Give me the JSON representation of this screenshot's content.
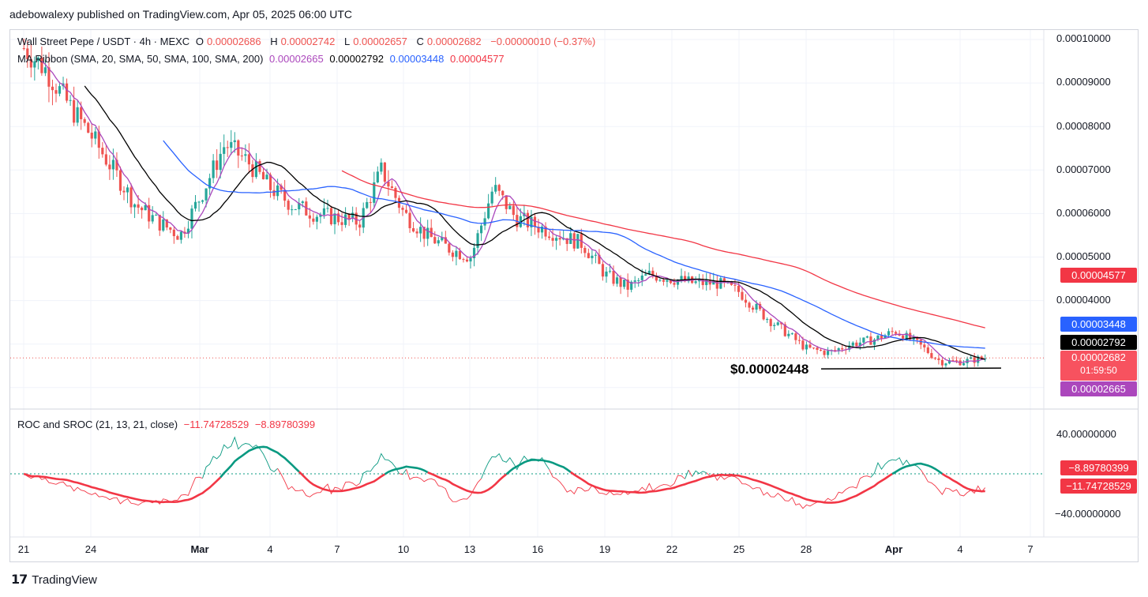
{
  "header": {
    "publisher_line": "adebowalexy published on TradingView.com, Apr 05, 2025 06:00 UTC"
  },
  "symbol_legend": {
    "name": "Wall Street Pepe / USDT · 4h · MEXC",
    "o_label": "O",
    "o": "0.00002686",
    "h_label": "H",
    "h": "0.00002742",
    "l_label": "L",
    "l": "0.00002657",
    "c_label": "C",
    "c": "0.00002682",
    "change": "−0.00000010 (−0.37%)"
  },
  "ma_legend": {
    "name": "MA Ribbon (SMA, 20, SMA, 50, SMA, 100, SMA, 200)",
    "v20": "0.00002665",
    "v50": "0.00002792",
    "v100": "0.00003448",
    "v200": "0.00004577"
  },
  "roc_legend": {
    "name": "ROC and SROC (21, 13, 21, close)",
    "roc": "−11.74728529",
    "sroc": "−8.89780399"
  },
  "annotation": {
    "support_label": "$0.00002448"
  },
  "price_axis": {
    "ticks": [
      "0.00010000",
      "0.00009000",
      "0.00008000",
      "0.00007000",
      "0.00006000",
      "0.00005000",
      "0.00004000"
    ],
    "tags": {
      "sma200": "0.00004577",
      "sma100": "0.00003448",
      "sma50": "0.00002792",
      "last_price": "0.00002682",
      "countdown": "01:59:50",
      "sma20": "0.00002665"
    }
  },
  "roc_axis": {
    "ticks": [
      "40.00000000",
      "−40.00000000"
    ],
    "tags": {
      "sroc": "−8.89780399",
      "roc": "−11.74728529"
    }
  },
  "time_axis": [
    "21",
    "24",
    "Mar",
    "4",
    "7",
    "10",
    "13",
    "16",
    "19",
    "22",
    "25",
    "28",
    "Apr",
    "4",
    "7"
  ],
  "footer": {
    "brand": "TradingView"
  },
  "colors": {
    "up": "#26a69a",
    "down": "#ef5350",
    "sma20": "#ab47bc",
    "sma50": "#000000",
    "sma100": "#2962ff",
    "sma200": "#f23645",
    "roc": "#f23645",
    "sroc": "#089981"
  },
  "chart_data": [
    {
      "type": "candlestick",
      "title": "Wall Street Pepe / USDT · 4h · MEXC",
      "ylim": [
        2.2e-05,
        0.000102
      ],
      "x_range": [
        "Feb 20",
        "Apr 7"
      ],
      "grid": true,
      "candles_approx": {
        "x": [
          "Feb 21",
          "Feb 22",
          "Feb 23",
          "Feb 24",
          "Feb 25",
          "Feb 26",
          "Feb 27",
          "Feb 28",
          "Mar 1",
          "Mar 2",
          "Mar 3",
          "Mar 4",
          "Mar 5",
          "Mar 6",
          "Mar 7",
          "Mar 8",
          "Mar 9",
          "Mar 10",
          "Mar 11",
          "Mar 12",
          "Mar 13",
          "Mar 14",
          "Mar 15",
          "Mar 16",
          "Mar 17",
          "Mar 18",
          "Mar 19",
          "Mar 20",
          "Mar 21",
          "Mar 22",
          "Mar 23",
          "Mar 24",
          "Mar 25",
          "Mar 26",
          "Mar 27",
          "Mar 28",
          "Mar 29",
          "Mar 30",
          "Mar 31",
          "Apr 1",
          "Apr 2",
          "Apr 3",
          "Apr 4",
          "Apr 5"
        ],
        "close": [
          9.8e-05,
          9.3e-05,
          8.5e-05,
          7.8e-05,
          7e-05,
          6.2e-05,
          5.8e-05,
          5.5e-05,
          6.5e-05,
          7.6e-05,
          7.2e-05,
          6.6e-05,
          6.2e-05,
          6e-05,
          5.9e-05,
          5.8e-05,
          7e-05,
          6e-05,
          5.5e-05,
          5.2e-05,
          5e-05,
          6.6e-05,
          5.9e-05,
          5.7e-05,
          5.5e-05,
          5.3e-05,
          4.6e-05,
          4.3e-05,
          4.6e-05,
          4.5e-05,
          4.4e-05,
          4.4e-05,
          4.2e-05,
          3.7e-05,
          3.3e-05,
          2.9e-05,
          2.8e-05,
          3e-05,
          3.1e-05,
          3.3e-05,
          3e-05,
          2.6e-05,
          2.6e-05,
          2.68e-05
        ]
      },
      "support_level": 2.448e-05,
      "series": [
        {
          "name": "SMA 20",
          "last": 2.665e-05
        },
        {
          "name": "SMA 50",
          "last": 2.792e-05
        },
        {
          "name": "SMA 100",
          "last": 3.448e-05
        },
        {
          "name": "SMA 200",
          "last": 4.577e-05
        }
      ]
    },
    {
      "type": "line",
      "title": "ROC and SROC (21, 13, 21, close)",
      "ylim": [
        -55,
        55
      ],
      "series": [
        {
          "name": "ROC",
          "last": -11.74728529
        },
        {
          "name": "SROC",
          "last": -8.89780399
        }
      ]
    }
  ]
}
